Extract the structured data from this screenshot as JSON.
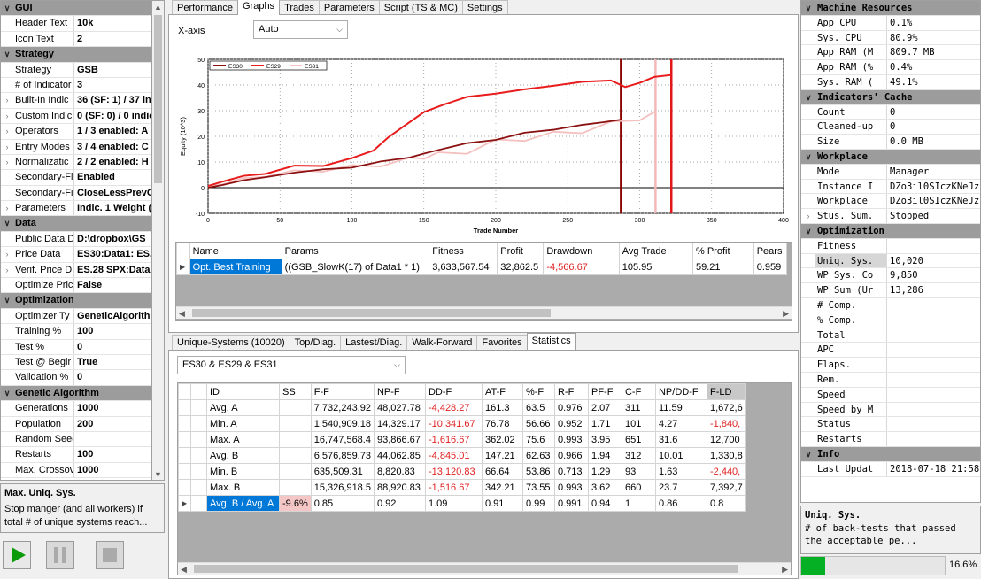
{
  "left_panel": {
    "rows": [
      {
        "type": "cat",
        "label": "GUI"
      },
      {
        "type": "prop",
        "name": "Header Text",
        "value": "10k"
      },
      {
        "type": "prop",
        "name": "Icon Text",
        "value": "2"
      },
      {
        "type": "cat",
        "label": "Strategy"
      },
      {
        "type": "prop",
        "name": "Strategy",
        "value": "GSB"
      },
      {
        "type": "prop",
        "name": "# of Indicator",
        "value": "3"
      },
      {
        "type": "prop",
        "exp": true,
        "name": "Built-In Indic",
        "value": "36 (SF: 1) / 37 in"
      },
      {
        "type": "prop",
        "exp": true,
        "name": "Custom Indic",
        "value": "0 (SF: 0) / 0 indic"
      },
      {
        "type": "prop",
        "exp": true,
        "name": "Operators",
        "value": "1 / 3 enabled: A"
      },
      {
        "type": "prop",
        "exp": true,
        "name": "Entry Modes",
        "value": "3 / 4 enabled: C"
      },
      {
        "type": "prop",
        "exp": true,
        "name": "Normalizatic",
        "value": "2 / 2 enabled: H"
      },
      {
        "type": "prop",
        "name": "Secondary-Fi",
        "value": "Enabled"
      },
      {
        "type": "prop",
        "name": "Secondary-Fi",
        "value": "CloseLessPrevCl"
      },
      {
        "type": "prop",
        "exp": true,
        "name": "Parameters",
        "value": "Indic. 1 Weight ("
      },
      {
        "type": "cat",
        "label": "Data"
      },
      {
        "type": "prop",
        "name": "Public Data D",
        "value": "D:\\dropbox\\GS"
      },
      {
        "type": "prop",
        "exp": true,
        "name": "Price Data",
        "value": "ES30:Data1: ES.2"
      },
      {
        "type": "prop",
        "exp": true,
        "name": "Verif. Price D",
        "value": "ES.28 SPX:Data1"
      },
      {
        "type": "prop",
        "name": "Optimize Pric",
        "value": "False"
      },
      {
        "type": "cat",
        "label": "Optimization"
      },
      {
        "type": "prop",
        "name": "Optimizer Ty",
        "value": "GeneticAlgorithm"
      },
      {
        "type": "prop",
        "name": "Training %",
        "value": "100"
      },
      {
        "type": "prop",
        "name": "Test %",
        "value": "0"
      },
      {
        "type": "prop",
        "name": "Test @ Begir",
        "value": "True"
      },
      {
        "type": "prop",
        "name": "Validation %",
        "value": "0"
      },
      {
        "type": "cat",
        "label": "Genetic Algorithm"
      },
      {
        "type": "prop",
        "name": "Generations",
        "value": "1000"
      },
      {
        "type": "prop",
        "name": "Population",
        "value": "200"
      },
      {
        "type": "prop",
        "name": "Random Seed",
        "value": ""
      },
      {
        "type": "prop",
        "name": "Restarts",
        "value": "100"
      },
      {
        "type": "prop",
        "name": "Max. Crossov",
        "value": "1000"
      }
    ],
    "description": {
      "title": "Max. Uniq. Sys.",
      "text": "Stop manger (and all workers) if total # of unique systems reach..."
    },
    "controls": {
      "play": "play-icon",
      "pause": "pause-icon",
      "stop": "stop-icon",
      "play_color": "#0a9a0a"
    }
  },
  "top_tabs": [
    "Performance",
    "Graphs",
    "Trades",
    "Parameters",
    "Script (TS & MC)",
    "Settings"
  ],
  "top_active_tab": 1,
  "graph": {
    "xaxis_label": "X-axis",
    "xaxis_value": "Auto"
  },
  "chart_data": {
    "type": "line",
    "xlabel": "Trade Number",
    "ylabel": "Equity (10^3)",
    "xlim": [
      0,
      400
    ],
    "ylim": [
      -10,
      50
    ],
    "xticks": [
      0,
      50,
      100,
      150,
      200,
      250,
      300,
      350,
      400
    ],
    "yticks": [
      -10,
      0,
      10,
      20,
      30,
      40,
      50
    ],
    "grid": true,
    "legend": "top-left",
    "vlines": [
      {
        "x": 287,
        "color": "#8b0000"
      },
      {
        "x": 311,
        "color": "#f4b8b8"
      },
      {
        "x": 322,
        "color": "#e01818"
      }
    ],
    "series": [
      {
        "name": "ES30",
        "color": "#8b1010",
        "x": [
          0,
          10,
          25,
          40,
          60,
          80,
          100,
          120,
          140,
          150,
          160,
          180,
          200,
          220,
          240,
          260,
          275,
          287
        ],
        "values": [
          0,
          1,
          3,
          4,
          6,
          7,
          8,
          10,
          12,
          13,
          15,
          17,
          19,
          21,
          23,
          24,
          26,
          26
        ]
      },
      {
        "name": "ES29",
        "color": "#e81c1c",
        "x": [
          0,
          10,
          25,
          40,
          60,
          80,
          100,
          115,
          125,
          135,
          150,
          165,
          180,
          200,
          220,
          240,
          260,
          280,
          290,
          300,
          310,
          322
        ],
        "values": [
          0,
          3,
          4,
          6,
          8,
          9,
          11,
          15,
          19,
          24,
          29,
          33,
          35,
          37,
          38,
          40,
          41,
          42,
          39,
          41,
          43,
          44
        ]
      },
      {
        "name": "ES31",
        "color": "#f4c0c0",
        "x": [
          0,
          10,
          25,
          40,
          60,
          80,
          100,
          120,
          140,
          150,
          160,
          180,
          200,
          220,
          240,
          260,
          280,
          300,
          311
        ],
        "values": [
          0,
          2,
          3,
          5,
          6,
          7,
          8,
          9,
          11,
          12,
          13,
          14,
          18,
          19,
          21,
          22,
          25,
          27,
          29
        ]
      }
    ]
  },
  "results_table": {
    "headers": [
      "Name",
      "Params",
      "Fitness",
      "Profit",
      "Drawdown",
      "Avg Trade",
      "% Profit",
      "Pears"
    ],
    "row": {
      "name": "Opt. Best Training",
      "params": "((GSB_SlowK(17) of Data1 * 1)",
      "fitness": "3,633,567.54",
      "profit": "32,862.5",
      "drawdown": "-4,566.67",
      "avg_trade": "105.95",
      "pct_profit": "59.21",
      "pears": "0.959"
    }
  },
  "bottom_tabs": [
    "Unique-Systems (10020)",
    "Top/Diag.",
    "Lastest/Diag.",
    "Walk-Forward",
    "Favorites",
    "Statistics"
  ],
  "bottom_active_tab": 5,
  "stats": {
    "combo_value": "ES30 & ES29 & ES31",
    "headers": [
      "ID",
      "SS",
      "F-F",
      "NP-F",
      "DD-F",
      "AT-F",
      "%-F",
      "R-F",
      "PF-F",
      "C-F",
      "NP/DD-F",
      "F-LD"
    ],
    "rows": [
      [
        "Avg. A",
        "",
        "7,732,243.92",
        "48,027.78",
        "-4,428.27",
        "161.3",
        "63.5",
        "0.976",
        "2.07",
        "311",
        "11.59",
        "1,672,6"
      ],
      [
        "Min. A",
        "",
        "1,540,909.18",
        "14,329.17",
        "-10,341.67",
        "76.78",
        "56.66",
        "0.952",
        "1.71",
        "101",
        "4.27",
        "-1,840,"
      ],
      [
        "Max. A",
        "",
        "16,747,568.4",
        "93,866.67",
        "-1,616.67",
        "362.02",
        "75.6",
        "0.993",
        "3.95",
        "651",
        "31.6",
        "12,700"
      ],
      [
        "Avg. B",
        "",
        "6,576,859.73",
        "44,062.85",
        "-4,845.01",
        "147.21",
        "62.63",
        "0.966",
        "1.94",
        "312",
        "10.01",
        "1,330,8"
      ],
      [
        "Min. B",
        "",
        "635,509.31",
        "8,820.83",
        "-13,120.83",
        "66.64",
        "53.86",
        "0.713",
        "1.29",
        "93",
        "1.63",
        "-2,440,"
      ],
      [
        "Max. B",
        "",
        "15,326,918.5",
        "88,920.83",
        "-1,516.67",
        "342.21",
        "73.55",
        "0.993",
        "3.62",
        "660",
        "23.7",
        "7,392,7"
      ],
      [
        "Avg. B / Avg. A",
        "-9.6%",
        "0.85",
        "0.92",
        "1.09",
        "0.91",
        "0.99",
        "0.991",
        "0.94",
        "1",
        "0.86",
        "0.8"
      ]
    ]
  },
  "right_panel": {
    "rows": [
      {
        "type": "cat",
        "label": "Machine Resources"
      },
      {
        "type": "prop",
        "name": "App CPU",
        "value": "0.1%"
      },
      {
        "type": "prop",
        "name": "Sys. CPU",
        "value": "80.9%"
      },
      {
        "type": "prop",
        "name": "App RAM (M",
        "value": "809.7 MB"
      },
      {
        "type": "prop",
        "name": "App RAM (%",
        "value": "0.4%"
      },
      {
        "type": "prop",
        "name": "Sys. RAM (",
        "value": "49.1%"
      },
      {
        "type": "cat",
        "label": "Indicators' Cache"
      },
      {
        "type": "prop",
        "name": "Count",
        "value": "0"
      },
      {
        "type": "prop",
        "name": "Cleaned-up",
        "value": "0"
      },
      {
        "type": "prop",
        "name": "Size",
        "value": "0.0 MB"
      },
      {
        "type": "cat",
        "label": "Workplace"
      },
      {
        "type": "prop",
        "name": "Mode",
        "value": "Manager"
      },
      {
        "type": "prop",
        "name": "Instance I",
        "value": "DZo3il0SIczKNeJz"
      },
      {
        "type": "prop",
        "name": "Workplace",
        "value": "DZo3il0SIczKNeJz"
      },
      {
        "type": "prop",
        "exp": true,
        "name": "Stus. Sum.",
        "value": "Stopped"
      },
      {
        "type": "cat",
        "label": "Optimization"
      },
      {
        "type": "prop",
        "name": "Fitness",
        "value": ""
      },
      {
        "type": "prop",
        "sel": true,
        "name": "Uniq. Sys.",
        "value": "10,020"
      },
      {
        "type": "prop",
        "name": "WP Sys. Co",
        "value": "9,850"
      },
      {
        "type": "prop",
        "name": "WP Sum (Ur",
        "value": "13,286"
      },
      {
        "type": "prop",
        "name": "# Comp.",
        "value": ""
      },
      {
        "type": "prop",
        "name": "% Comp.",
        "value": ""
      },
      {
        "type": "prop",
        "name": "Total",
        "value": ""
      },
      {
        "type": "prop",
        "name": "APC",
        "value": ""
      },
      {
        "type": "prop",
        "name": "Elaps.",
        "value": ""
      },
      {
        "type": "prop",
        "name": "Rem.",
        "value": ""
      },
      {
        "type": "prop",
        "name": "Speed",
        "value": ""
      },
      {
        "type": "prop",
        "name": "Speed by M",
        "value": ""
      },
      {
        "type": "prop",
        "name": "Status",
        "value": ""
      },
      {
        "type": "prop",
        "name": "Restarts",
        "value": ""
      },
      {
        "type": "cat",
        "label": "Info"
      },
      {
        "type": "prop",
        "name": "Last Updat",
        "value": "2018-07-18 21:58"
      }
    ],
    "description": {
      "title": "Uniq. Sys.",
      "text": "# of back-tests that passed the acceptable pe..."
    },
    "progress": {
      "fraction": 0.166,
      "label": "16.6%",
      "color": "#06b025"
    }
  }
}
